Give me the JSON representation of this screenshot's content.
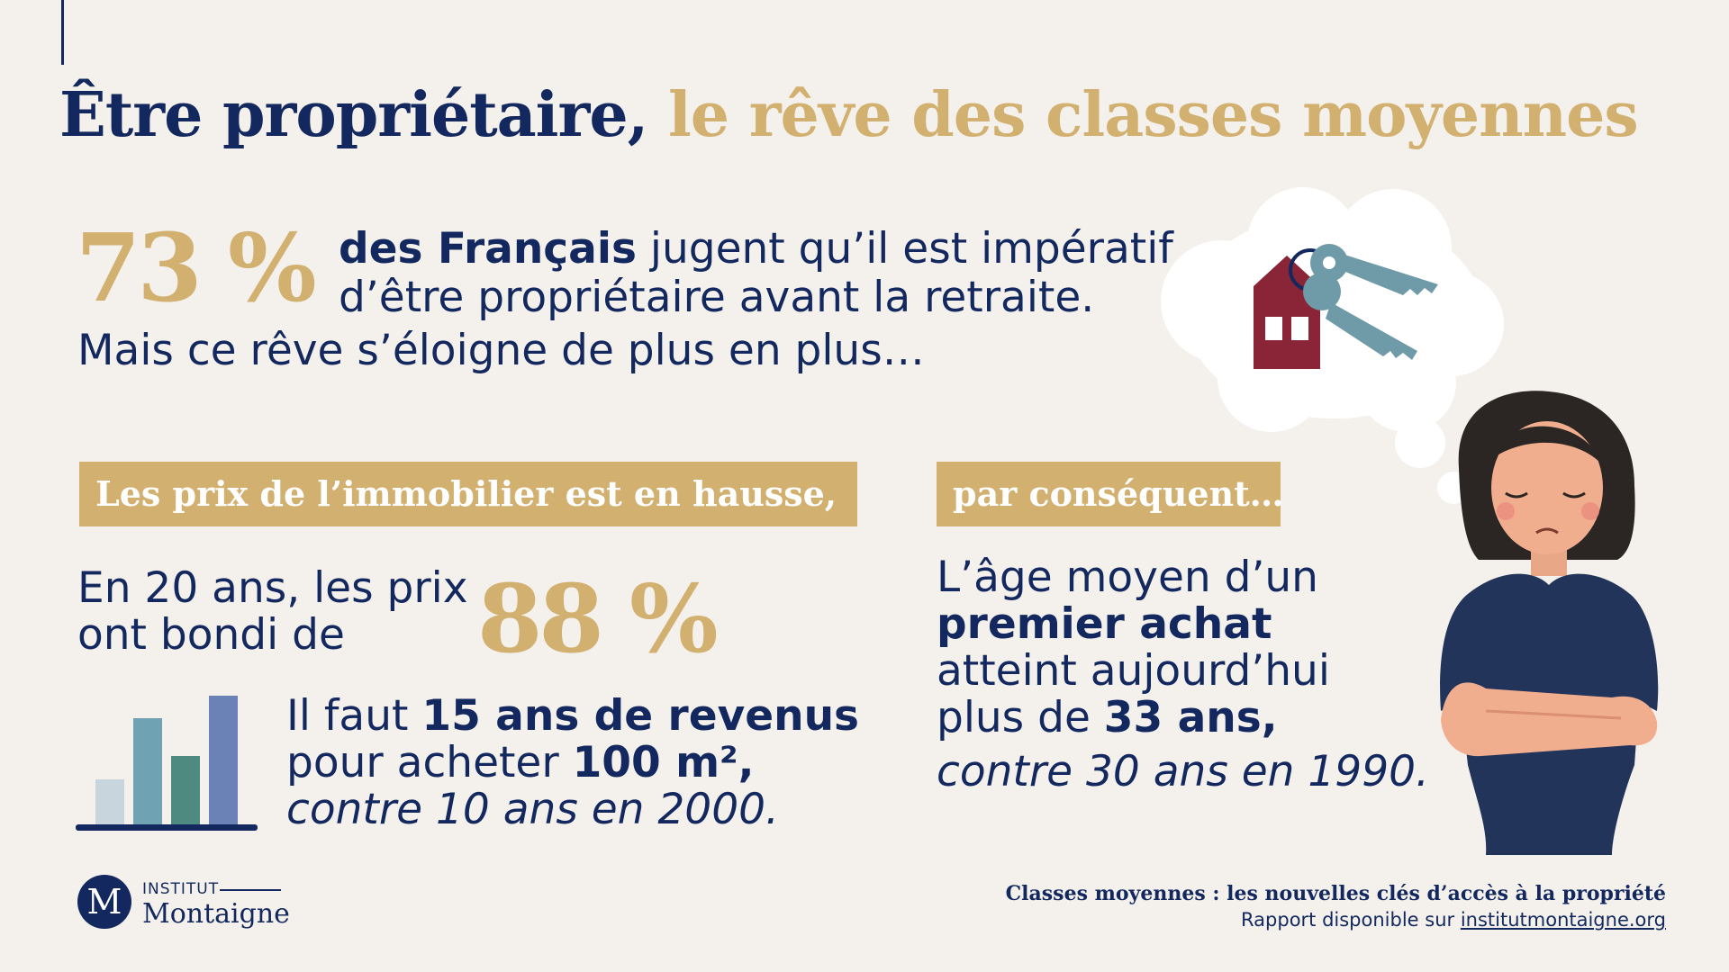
{
  "colors": {
    "navy": "#13285e",
    "gold": "#d2b070",
    "background": "#f4f1ec"
  },
  "title": {
    "part1": "Être propriétaire,",
    "part2": " le rêve des classes moyennes"
  },
  "intro": {
    "stat": "73 %",
    "bold": "des Français",
    "line1_rest": " jugent qu’il est impératif",
    "line2": "d’être propriétaire avant la retraite.",
    "subline": "Mais ce rêve s’éloigne de plus en plus…"
  },
  "left_section": {
    "band": "Les prix de l’immobilier est en hausse,",
    "rise_line1": "En 20 ans, les prix",
    "rise_line2": "ont bondi de",
    "stat": "88 %",
    "revenus_pre": "Il faut ",
    "revenus_bold": "15 ans de revenus",
    "revenus_line2_pre": "pour acheter ",
    "revenus_line2_bold": "100 m²,",
    "revenus_line3": "contre 10 ans en 2000.",
    "icon": "bar-chart-icon"
  },
  "right_section": {
    "band": "par conséquent…",
    "line1": "L’âge moyen d’un",
    "line2_bold": "premier achat",
    "line3": "atteint aujourd’hui",
    "line4_pre": "plus de ",
    "line4_bold": "33 ans,",
    "line5": "contre 30 ans en 1990.",
    "illustration": "sad-woman-dreaming-house-keys"
  },
  "logo": {
    "mark": "M",
    "institut": "INSTITUT",
    "name": "Montaigne"
  },
  "footer": {
    "title": "Classes moyennes : les nouvelles clés d’accès à la propriété",
    "link_pre": "Rapport disponible sur ",
    "link": "institutmontaigne.org"
  }
}
